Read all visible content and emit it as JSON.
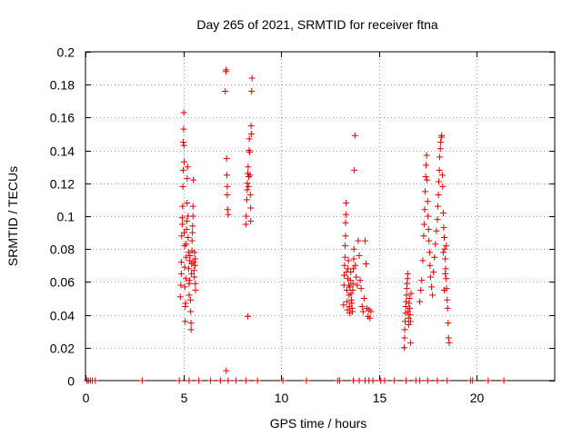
{
  "chart_data": {
    "type": "scatter",
    "title": "Day 265 of 2021, SRMTID for receiver ftna",
    "xlabel": "GPS time / hours",
    "ylabel": "SRMTID / TECUs",
    "xlim": [
      0,
      24
    ],
    "ylim": [
      0,
      0.2
    ],
    "xticks": [
      0,
      5,
      10,
      15,
      20
    ],
    "xtick_labels": [
      "0",
      "5",
      "10",
      "15",
      "20"
    ],
    "yticks": [
      0,
      0.02,
      0.04,
      0.06,
      0.08,
      0.1,
      0.12,
      0.14,
      0.16,
      0.18,
      0.2
    ],
    "ytick_labels": [
      "0",
      "0.02",
      "0.04",
      "0.06",
      "0.08",
      "0.1",
      "0.12",
      "0.14",
      "0.16",
      "0.18",
      "0.2"
    ],
    "grid": true,
    "marker": "+",
    "color": "#e00000",
    "series": [
      {
        "name": "SRMTID",
        "points": [
          [
            0.08,
            0
          ],
          [
            0.15,
            0
          ],
          [
            0.25,
            0
          ],
          [
            0.35,
            0
          ],
          [
            0.5,
            0
          ],
          [
            2.9,
            0
          ],
          [
            4.8,
            0
          ],
          [
            5.3,
            0
          ],
          [
            5.8,
            0
          ],
          [
            6.4,
            0
          ],
          [
            6.9,
            0
          ],
          [
            7.3,
            0
          ],
          [
            7.7,
            0
          ],
          [
            8.2,
            0
          ],
          [
            8.8,
            0
          ],
          [
            10.1,
            0
          ],
          [
            11.3,
            0
          ],
          [
            12.9,
            0
          ],
          [
            13.0,
            0
          ],
          [
            13.7,
            0
          ],
          [
            14.0,
            0
          ],
          [
            14.3,
            0
          ],
          [
            14.5,
            0
          ],
          [
            14.7,
            0
          ],
          [
            15.1,
            0
          ],
          [
            15.3,
            0
          ],
          [
            15.8,
            0
          ],
          [
            16.4,
            0
          ],
          [
            16.9,
            0
          ],
          [
            17.1,
            0
          ],
          [
            17.5,
            0
          ],
          [
            18.0,
            0
          ],
          [
            18.5,
            0
          ],
          [
            19.7,
            0
          ],
          [
            19.8,
            0
          ],
          [
            20.6,
            0
          ],
          [
            21.4,
            0
          ],
          [
            4.85,
            0.051
          ],
          [
            4.88,
            0.058
          ],
          [
            4.9,
            0.065
          ],
          [
            4.9,
            0.072
          ],
          [
            4.92,
            0.088
          ],
          [
            4.95,
            0.095
          ],
          [
            4.95,
            0.099
          ],
          [
            4.97,
            0.106
          ],
          [
            4.98,
            0.118
          ],
          [
            5.0,
            0.128
          ],
          [
            5.0,
            0.145
          ],
          [
            5.02,
            0.153
          ],
          [
            5.03,
            0.163
          ],
          [
            5.03,
            0.143
          ],
          [
            5.05,
            0.133
          ],
          [
            5.05,
            0.09
          ],
          [
            5.07,
            0.082
          ],
          [
            5.07,
            0.069
          ],
          [
            5.08,
            0.057
          ],
          [
            5.1,
            0.045
          ],
          [
            5.1,
            0.036
          ],
          [
            5.12,
            0.047
          ],
          [
            5.13,
            0.062
          ],
          [
            5.15,
            0.075
          ],
          [
            5.15,
            0.083
          ],
          [
            5.17,
            0.092
          ],
          [
            5.18,
            0.097
          ],
          [
            5.2,
            0.108
          ],
          [
            5.2,
            0.123
          ],
          [
            5.22,
            0.13
          ],
          [
            5.25,
            0.1
          ],
          [
            5.25,
            0.087
          ],
          [
            5.27,
            0.078
          ],
          [
            5.28,
            0.068
          ],
          [
            5.3,
            0.059
          ],
          [
            5.3,
            0.052
          ],
          [
            5.32,
            0.061
          ],
          [
            5.33,
            0.073
          ],
          [
            5.35,
            0.076
          ],
          [
            5.37,
            0.049
          ],
          [
            5.38,
            0.042
          ],
          [
            5.4,
            0.035
          ],
          [
            5.4,
            0.031
          ],
          [
            5.42,
            0.065
          ],
          [
            5.43,
            0.071
          ],
          [
            5.45,
            0.079
          ],
          [
            5.45,
            0.085
          ],
          [
            5.47,
            0.09
          ],
          [
            5.48,
            0.094
          ],
          [
            5.5,
            0.1
          ],
          [
            5.5,
            0.106
          ],
          [
            5.52,
            0.122
          ],
          [
            5.53,
            0.072
          ],
          [
            5.55,
            0.067
          ],
          [
            5.57,
            0.063
          ],
          [
            5.58,
            0.078
          ],
          [
            5.6,
            0.074
          ],
          [
            5.6,
            0.07
          ],
          [
            5.62,
            0.059
          ],
          [
            5.63,
            0.055
          ],
          [
            7.15,
            0.176
          ],
          [
            7.18,
            0.188
          ],
          [
            7.2,
            0.189
          ],
          [
            7.22,
            0.135
          ],
          [
            7.23,
            0.125
          ],
          [
            7.25,
            0.118
          ],
          [
            7.25,
            0.113
          ],
          [
            7.27,
            0.104
          ],
          [
            7.3,
            0.101
          ],
          [
            7.2,
            0.006
          ],
          [
            8.2,
            0.095
          ],
          [
            8.22,
            0.1
          ],
          [
            8.25,
            0.11
          ],
          [
            8.27,
            0.116
          ],
          [
            8.28,
            0.12
          ],
          [
            8.3,
            0.126
          ],
          [
            8.32,
            0.13
          ],
          [
            8.33,
            0.118
          ],
          [
            8.35,
            0.124
          ],
          [
            8.37,
            0.14
          ],
          [
            8.38,
            0.147
          ],
          [
            8.4,
            0.139
          ],
          [
            8.42,
            0.125
          ],
          [
            8.43,
            0.113
          ],
          [
            8.45,
            0.105
          ],
          [
            8.45,
            0.097
          ],
          [
            8.47,
            0.155
          ],
          [
            8.48,
            0.15
          ],
          [
            8.5,
            0.176
          ],
          [
            8.52,
            0.184
          ],
          [
            8.3,
            0.039
          ],
          [
            13.2,
            0.046
          ],
          [
            13.22,
            0.058
          ],
          [
            13.23,
            0.064
          ],
          [
            13.25,
            0.07
          ],
          [
            13.27,
            0.075
          ],
          [
            13.28,
            0.082
          ],
          [
            13.3,
            0.088
          ],
          [
            13.3,
            0.096
          ],
          [
            13.32,
            0.101
          ],
          [
            13.33,
            0.108
          ],
          [
            13.35,
            0.066
          ],
          [
            13.37,
            0.055
          ],
          [
            13.38,
            0.048
          ],
          [
            13.4,
            0.043
          ],
          [
            13.42,
            0.062
          ],
          [
            13.43,
            0.068
          ],
          [
            13.45,
            0.073
          ],
          [
            13.47,
            0.058
          ],
          [
            13.48,
            0.052
          ],
          [
            13.5,
            0.045
          ],
          [
            13.52,
            0.041
          ],
          [
            13.53,
            0.057
          ],
          [
            13.55,
            0.061
          ],
          [
            13.57,
            0.066
          ],
          [
            13.58,
            0.053
          ],
          [
            13.6,
            0.049
          ],
          [
            13.62,
            0.047
          ],
          [
            13.63,
            0.044
          ],
          [
            13.65,
            0.042
          ],
          [
            13.67,
            0.055
          ],
          [
            13.68,
            0.059
          ],
          [
            13.7,
            0.068
          ],
          [
            13.72,
            0.074
          ],
          [
            13.73,
            0.08
          ],
          [
            13.75,
            0.128
          ],
          [
            13.78,
            0.149
          ],
          [
            13.8,
            0.07
          ],
          [
            13.85,
            0.063
          ],
          [
            13.9,
            0.058
          ],
          [
            13.95,
            0.085
          ],
          [
            14.0,
            0.076
          ],
          [
            14.05,
            0.061
          ],
          [
            14.1,
            0.056
          ],
          [
            14.15,
            0.045
          ],
          [
            14.2,
            0.042
          ],
          [
            14.25,
            0.05
          ],
          [
            14.3,
            0.085
          ],
          [
            14.35,
            0.071
          ],
          [
            14.4,
            0.044
          ],
          [
            14.45,
            0.039
          ],
          [
            14.5,
            0.043
          ],
          [
            14.55,
            0.038
          ],
          [
            14.6,
            0.042
          ],
          [
            16.3,
            0.02
          ],
          [
            16.32,
            0.026
          ],
          [
            16.33,
            0.031
          ],
          [
            16.35,
            0.036
          ],
          [
            16.37,
            0.041
          ],
          [
            16.38,
            0.045
          ],
          [
            16.4,
            0.048
          ],
          [
            16.42,
            0.052
          ],
          [
            16.43,
            0.056
          ],
          [
            16.45,
            0.059
          ],
          [
            16.47,
            0.062
          ],
          [
            16.48,
            0.065
          ],
          [
            16.5,
            0.042
          ],
          [
            16.52,
            0.038
          ],
          [
            16.53,
            0.034
          ],
          [
            16.55,
            0.047
          ],
          [
            16.57,
            0.05
          ],
          [
            16.58,
            0.044
          ],
          [
            16.6,
            0.04
          ],
          [
            16.62,
            0.036
          ],
          [
            16.63,
            0.023
          ],
          [
            16.65,
            0.053
          ],
          [
            17.1,
            0.048
          ],
          [
            17.15,
            0.055
          ],
          [
            17.2,
            0.061
          ],
          [
            17.25,
            0.073
          ],
          [
            17.3,
            0.088
          ],
          [
            17.32,
            0.095
          ],
          [
            17.35,
            0.104
          ],
          [
            17.37,
            0.115
          ],
          [
            17.4,
            0.124
          ],
          [
            17.42,
            0.131
          ],
          [
            17.45,
            0.137
          ],
          [
            17.47,
            0.122
          ],
          [
            17.5,
            0.109
          ],
          [
            17.52,
            0.1
          ],
          [
            17.55,
            0.092
          ],
          [
            17.57,
            0.085
          ],
          [
            17.6,
            0.078
          ],
          [
            17.62,
            0.07
          ],
          [
            17.65,
            0.063
          ],
          [
            17.7,
            0.057
          ],
          [
            17.75,
            0.052
          ],
          [
            17.8,
            0.066
          ],
          [
            17.85,
            0.075
          ],
          [
            17.9,
            0.083
          ],
          [
            17.95,
            0.091
          ],
          [
            18.0,
            0.098
          ],
          [
            18.02,
            0.106
          ],
          [
            18.05,
            0.113
          ],
          [
            18.07,
            0.121
          ],
          [
            18.1,
            0.128
          ],
          [
            18.12,
            0.136
          ],
          [
            18.15,
            0.141
          ],
          [
            18.17,
            0.145
          ],
          [
            18.2,
            0.148
          ],
          [
            18.22,
            0.149
          ],
          [
            18.25,
            0.125
          ],
          [
            18.27,
            0.118
          ],
          [
            18.3,
            0.102
          ],
          [
            18.32,
            0.093
          ],
          [
            18.35,
            0.087
          ],
          [
            18.37,
            0.08
          ],
          [
            18.4,
            0.074
          ],
          [
            18.42,
            0.068
          ],
          [
            18.45,
            0.062
          ],
          [
            18.47,
            0.056
          ],
          [
            18.5,
            0.049
          ],
          [
            18.52,
            0.044
          ],
          [
            18.55,
            0.035
          ],
          [
            18.57,
            0.026
          ],
          [
            18.6,
            0.023
          ],
          [
            18.3,
            0.078
          ],
          [
            18.35,
            0.055
          ],
          [
            18.4,
            0.065
          ],
          [
            18.45,
            0.082
          ]
        ]
      }
    ]
  }
}
